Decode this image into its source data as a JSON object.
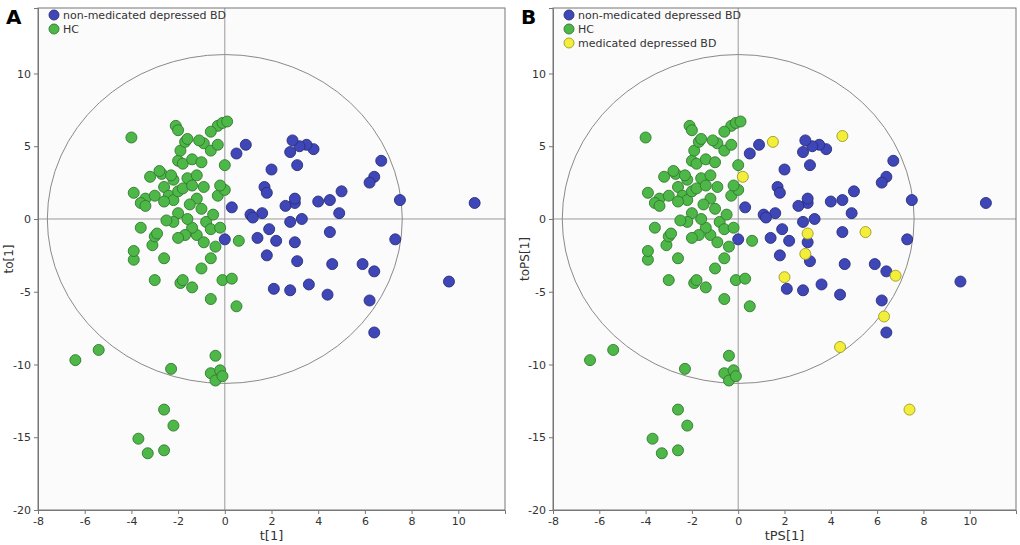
{
  "chart_data": [
    {
      "type": "scatter",
      "title": "A",
      "xlabel": "t[1]",
      "ylabel": "to[1]",
      "xlim": [
        -8,
        12
      ],
      "ylim": [
        -20,
        14.5
      ],
      "xticks": [
        -8,
        -6,
        -4,
        -2,
        0,
        2,
        4,
        6,
        8,
        10
      ],
      "yticks": [
        -20,
        -15,
        -10,
        -5,
        0,
        5,
        10
      ],
      "grid": false,
      "legend": "upper left",
      "marker": "circle",
      "ellipse": {
        "center": [
          0,
          0
        ],
        "radius_x": 7.6,
        "radius_y": 11.3
      },
      "series": [
        {
          "name": "non-medicated depressed BD",
          "color": "#3f47b8",
          "x": [
            10.7,
            9.6,
            7.5,
            7.3,
            6.7,
            6.4,
            6.2,
            6.4,
            6.2,
            6.4,
            5.9,
            5.0,
            4.9,
            4.5,
            4.5,
            4.4,
            4.6,
            3.8,
            3.5,
            3.2,
            2.9,
            3.1,
            2.8,
            3.3,
            3.0,
            3.0,
            2.8,
            3.0,
            3.1,
            2.8,
            3.6,
            2.6,
            2.0,
            1.7,
            1.8,
            1.6,
            1.8,
            2.2,
            1.9,
            1.1,
            1.2,
            1.4,
            0.9,
            0.5,
            0.3,
            0,
            2.1,
            4.0
          ],
          "values": [
            1.1,
            -4.3,
            1.3,
            -1.4,
            4.0,
            2.9,
            2.5,
            -3.6,
            -5.6,
            -7.8,
            -3.1,
            1.9,
            0.4,
            -0.9,
            1.3,
            -5.2,
            -3.1,
            4.8,
            5.1,
            5.0,
            5.4,
            3.7,
            4.6,
            0,
            1.1,
            1.4,
            -0.2,
            -1.6,
            -2.9,
            -4.9,
            -4.5,
            0.9,
            3.4,
            2.2,
            1.8,
            0.4,
            -2.5,
            -1.5,
            -0.7,
            0.3,
            0.1,
            -1.3,
            5.1,
            4.5,
            0.8,
            -1.4,
            -4.8,
            1.2
          ]
        },
        {
          "name": "HC",
          "color": "#4db848",
          "x": [
            -6.4,
            -5.4,
            -3.7,
            -3.3,
            -2.6,
            -2.6,
            -2.2,
            -2.3,
            -0.4,
            -0.6,
            -0.2,
            -0.4,
            -0.1,
            -0.6,
            0.5,
            -0.1,
            0.3,
            -1.4,
            -1.9,
            -1.8,
            -3.0,
            -2.6,
            -3.1,
            -3.9,
            -3.9,
            -3.6,
            -3.9,
            -3.4,
            -3.2,
            -3.6,
            -3.0,
            -2.7,
            -2.6,
            -2.4,
            -2.2,
            -2.0,
            -1.8,
            -1.6,
            -2.2,
            -2.0,
            -1.8,
            -1.9,
            -1.7,
            -2.1,
            -2.0,
            -1.6,
            -1.4,
            -1.2,
            -1.0,
            -0.9,
            -0.6,
            -0.3,
            -0.1,
            0.1,
            -0.6,
            -0.3,
            0,
            -0.9,
            -1.2,
            -1.5,
            -1.0,
            -0.8,
            -1.2,
            -0.9,
            -0.5,
            -0.6,
            -0.2,
            -0.4,
            -1.4,
            -1.7,
            -2.0,
            -1.6,
            -2.0,
            -2.2,
            -2.6,
            -2.5,
            -4.0,
            -3.0,
            -0.3,
            0,
            -0.2,
            -2.8,
            -2.3,
            0.6,
            -1.0,
            -0.6,
            -2.9,
            -3.4,
            -1.4,
            -1.1
          ],
          "values": [
            -9.7,
            -9.0,
            -15.1,
            -16.1,
            -13.1,
            -15.9,
            -14.2,
            -10.3,
            -9.4,
            -10.6,
            -10.4,
            -11.1,
            -10.8,
            -5.5,
            -6.0,
            -4.2,
            -4.1,
            -4.7,
            -4.4,
            -4.2,
            -4.2,
            -2.7,
            -1.8,
            -2.8,
            -2.2,
            -0.6,
            1.8,
            1.4,
            2.9,
            1.1,
            1.6,
            3.1,
            2.2,
            1.6,
            2.7,
            4.0,
            3.8,
            2.8,
            1.3,
            1.9,
            2.1,
            4.7,
            5.3,
            6.4,
            6.1,
            5.5,
            4.1,
            3.0,
            3.9,
            5.2,
            4.7,
            6.4,
            6.6,
            6.7,
            6.0,
            5.1,
            3.7,
            2.2,
            1.4,
            1.0,
            0.7,
            -0.2,
            -1.1,
            -1.6,
            0.3,
            -0.7,
            -0.6,
            -1.9,
            -0.6,
            -1.1,
            -1.3,
            0,
            0.4,
            -0.2,
            1.2,
            -0.1,
            5.6,
            -1.2,
            1.6,
            2.0,
            2.3,
            3.3,
            3.0,
            -1.5,
            -3.4,
            -2.7,
            -1.0,
            0.9,
            2.3,
            5.4
          ]
        }
      ]
    },
    {
      "type": "scatter",
      "title": "B",
      "xlabel": "tPS[1]",
      "ylabel": "toPS[1]",
      "xlim": [
        -8,
        12
      ],
      "ylim": [
        -20,
        14.5
      ],
      "xticks": [
        -8,
        -6,
        -4,
        -2,
        0,
        2,
        4,
        6,
        8,
        10
      ],
      "yticks": [
        -20,
        -15,
        -10,
        -5,
        0,
        5,
        10
      ],
      "grid": false,
      "legend": "upper left",
      "marker": "circle",
      "ellipse": {
        "center": [
          0,
          0
        ],
        "radius_x": 7.6,
        "radius_y": 11.3
      },
      "series": [
        {
          "name": "non-medicated depressed BD",
          "color": "#3f47b8",
          "x": [
            10.7,
            9.6,
            7.5,
            7.3,
            6.7,
            6.4,
            6.2,
            6.4,
            6.2,
            6.4,
            5.9,
            5.0,
            4.9,
            4.5,
            4.5,
            4.4,
            4.6,
            3.8,
            3.5,
            3.2,
            2.9,
            3.1,
            2.8,
            3.3,
            3.0,
            3.0,
            2.8,
            3.0,
            3.1,
            2.8,
            3.6,
            2.6,
            2.0,
            1.7,
            1.8,
            1.6,
            1.8,
            2.2,
            1.9,
            1.1,
            1.2,
            1.4,
            0.9,
            0.5,
            0.3,
            0,
            2.1,
            4.0
          ],
          "values": [
            1.1,
            -4.3,
            1.3,
            -1.4,
            4.0,
            2.9,
            2.5,
            -3.6,
            -5.6,
            -7.8,
            -3.1,
            1.9,
            0.4,
            -0.9,
            1.3,
            -5.2,
            -3.1,
            4.8,
            5.1,
            5.0,
            5.4,
            3.7,
            4.6,
            0,
            1.1,
            1.4,
            -0.2,
            -1.6,
            -2.9,
            -4.9,
            -4.5,
            0.9,
            3.4,
            2.2,
            1.8,
            0.4,
            -2.5,
            -1.5,
            -0.7,
            0.3,
            0.1,
            -1.3,
            5.1,
            4.5,
            0.8,
            -1.4,
            -4.8,
            1.2
          ]
        },
        {
          "name": "HC",
          "color": "#4db848",
          "x": [
            -6.4,
            -5.4,
            -3.7,
            -3.3,
            -2.6,
            -2.6,
            -2.2,
            -2.3,
            -0.4,
            -0.6,
            -0.2,
            -0.4,
            -0.1,
            -0.6,
            0.5,
            -0.1,
            0.3,
            -1.4,
            -1.9,
            -1.8,
            -3.0,
            -2.6,
            -3.1,
            -3.9,
            -3.9,
            -3.6,
            -3.9,
            -3.4,
            -3.2,
            -3.6,
            -3.0,
            -2.7,
            -2.6,
            -2.4,
            -2.2,
            -2.0,
            -1.8,
            -1.6,
            -2.2,
            -2.0,
            -1.8,
            -1.9,
            -1.7,
            -2.1,
            -2.0,
            -1.6,
            -1.4,
            -1.2,
            -1.0,
            -0.9,
            -0.6,
            -0.3,
            -0.1,
            0.1,
            -0.6,
            -0.3,
            0,
            -0.9,
            -1.2,
            -1.5,
            -1.0,
            -0.8,
            -1.2,
            -0.9,
            -0.5,
            -0.6,
            -0.2,
            -0.4,
            -1.4,
            -1.7,
            -2.0,
            -1.6,
            -2.0,
            -2.2,
            -2.6,
            -2.5,
            -4.0,
            -3.0,
            -0.3,
            0,
            -0.2,
            -2.8,
            -2.3,
            0.6,
            -1.0,
            -0.6,
            -2.9,
            -3.4,
            -1.4,
            -1.1
          ],
          "values": [
            -9.7,
            -9.0,
            -15.1,
            -16.1,
            -13.1,
            -15.9,
            -14.2,
            -10.3,
            -9.4,
            -10.6,
            -10.4,
            -11.1,
            -10.8,
            -5.5,
            -6.0,
            -4.2,
            -4.1,
            -4.7,
            -4.4,
            -4.2,
            -4.2,
            -2.7,
            -1.8,
            -2.8,
            -2.2,
            -0.6,
            1.8,
            1.4,
            2.9,
            1.1,
            1.6,
            3.1,
            2.2,
            1.6,
            2.7,
            4.0,
            3.8,
            2.8,
            1.3,
            1.9,
            2.1,
            4.7,
            5.3,
            6.4,
            6.1,
            5.5,
            4.1,
            3.0,
            3.9,
            5.2,
            4.7,
            6.4,
            6.6,
            6.7,
            6.0,
            5.1,
            3.7,
            2.2,
            1.4,
            1.0,
            0.7,
            -0.2,
            -1.1,
            -1.6,
            0.3,
            -0.7,
            -0.6,
            -1.9,
            -0.6,
            -1.1,
            -1.3,
            0,
            0.4,
            -0.2,
            1.2,
            -0.1,
            5.6,
            -1.2,
            1.6,
            2.0,
            2.3,
            3.3,
            3.0,
            -1.5,
            -3.4,
            -2.7,
            -1.0,
            0.9,
            2.3,
            5.4
          ]
        },
        {
          "name": "medicated depressed BD",
          "color": "#f3ee3a",
          "x": [
            1.5,
            4.5,
            0.2,
            3.0,
            5.5,
            2.9,
            2.0,
            6.8,
            4.4,
            6.3,
            7.4
          ],
          "values": [
            5.3,
            5.7,
            2.9,
            -1.0,
            -0.9,
            -2.4,
            -4.0,
            -3.9,
            -8.8,
            -6.7,
            -13.1
          ]
        }
      ]
    }
  ]
}
